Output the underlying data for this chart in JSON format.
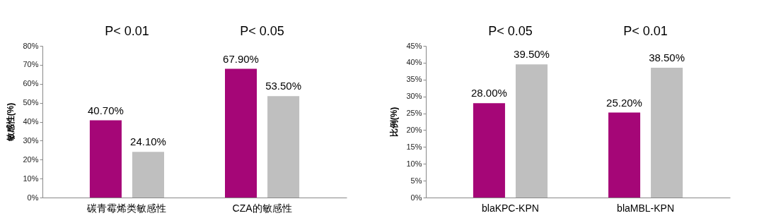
{
  "chart_data": [
    {
      "type": "bar",
      "ylabel": "敏感性(%)",
      "categories": [
        "碳青霉烯类敏感性",
        "CZA的敏感性"
      ],
      "series": [
        {
          "color": "#a50677",
          "values": [
            40.7,
            67.9
          ],
          "value_labels": [
            "40.70%",
            "67.90%"
          ]
        },
        {
          "color": "#bfbfbf",
          "values": [
            24.1,
            53.5
          ],
          "value_labels": [
            "24.10%",
            "53.50%"
          ]
        }
      ],
      "ylim": [
        0,
        80
      ],
      "yticks": [
        {
          "value": 0,
          "label": "0%"
        },
        {
          "value": 10,
          "label": "10%"
        },
        {
          "value": 20,
          "label": "20%"
        },
        {
          "value": 30,
          "label": "30%"
        },
        {
          "value": 40,
          "label": "40%"
        },
        {
          "value": 50,
          "label": "50%"
        },
        {
          "value": 60,
          "label": "60%"
        },
        {
          "value": 70,
          "label": "70%"
        },
        {
          "value": 80,
          "label": "80%"
        }
      ],
      "annotations": [
        "P< 0.01",
        "P< 0.05"
      ],
      "grid": false
    },
    {
      "type": "bar",
      "ylabel": "比例(%)",
      "categories": [
        "blaKPC-KPN",
        "blaMBL-KPN"
      ],
      "series": [
        {
          "color": "#a50677",
          "values": [
            28.0,
            25.2
          ],
          "value_labels": [
            "28.00%",
            "25.20%"
          ]
        },
        {
          "color": "#bfbfbf",
          "values": [
            39.5,
            38.5
          ],
          "value_labels": [
            "39.50%",
            "38.50%"
          ]
        }
      ],
      "ylim": [
        0,
        45
      ],
      "yticks": [
        {
          "value": 0,
          "label": "0%"
        },
        {
          "value": 5,
          "label": "5%"
        },
        {
          "value": 10,
          "label": "10%"
        },
        {
          "value": 15,
          "label": "15%"
        },
        {
          "value": 20,
          "label": "20%"
        },
        {
          "value": 25,
          "label": "25%"
        },
        {
          "value": 30,
          "label": "30%"
        },
        {
          "value": 35,
          "label": "35%"
        },
        {
          "value": 40,
          "label": "40%"
        },
        {
          "value": 45,
          "label": "45%"
        }
      ],
      "annotations": [
        "P< 0.05",
        "P< 0.01"
      ],
      "grid": false
    }
  ]
}
